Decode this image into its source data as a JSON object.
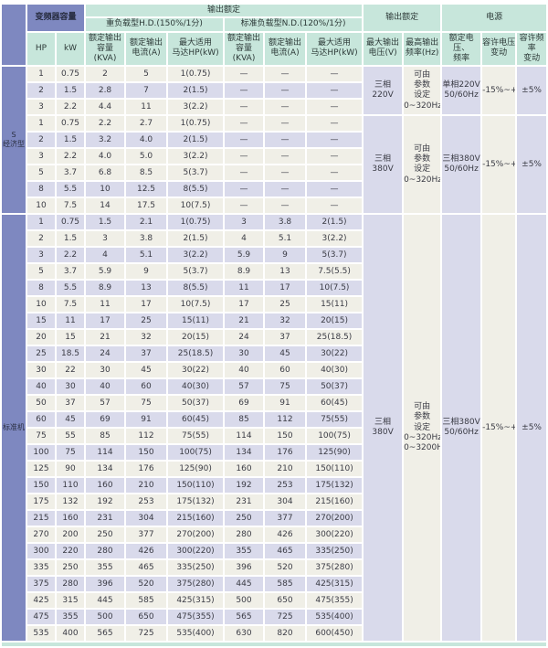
{
  "header": {
    "capacity_group": "变频器容量",
    "output_rating_group": "输出额定",
    "hd_group": "重负载型H.D.(150%/1分)",
    "nd_group": "标准负载型N.D.(120%/1分)",
    "output_rating2_group": "输出额定",
    "power_group": "电源",
    "col_hp": "HP",
    "col_kw": "kW",
    "col_kva": "额定输出\n容量(KVA)",
    "col_current": "额定输出\n电流(A)",
    "col_motor": "最大适用\n马达HP(kW)",
    "col_voltage": "最大输出\n电压(V)",
    "col_freq": "最高输出\n频率(Hz)",
    "col_rated_vf": "额定电压、\n频率",
    "col_volt_var": "容许电压\n变动",
    "col_freq_var": "容许频率\n变动"
  },
  "sections": [
    {
      "label": "S\n经济型",
      "groups": [
        {
          "rows": [
            [
              "1",
              "0.75",
              "2",
              "5",
              "1(0.75)",
              "—",
              "—",
              "—"
            ],
            [
              "2",
              "1.5",
              "2.8",
              "7",
              "2(1.5)",
              "—",
              "—",
              "—"
            ],
            [
              "3",
              "2.2",
              "4.4",
              "11",
              "3(2.2)",
              "—",
              "—",
              "—"
            ]
          ],
          "merged": {
            "voltage": "三相\n220V",
            "freq": "可由\n参数\n设定\n0~320Hz",
            "rated_vf": "单相220V\n50/60Hz",
            "volt_var": "-15%~+10%",
            "freq_var": "±5%"
          }
        },
        {
          "rows": [
            [
              "1",
              "0.75",
              "2.2",
              "2.7",
              "1(0.75)",
              "—",
              "—",
              "—"
            ],
            [
              "2",
              "1.5",
              "3.2",
              "4.0",
              "2(1.5)",
              "—",
              "—",
              "—"
            ],
            [
              "3",
              "2.2",
              "4.0",
              "5.0",
              "3(2.2)",
              "—",
              "—",
              "—"
            ],
            [
              "5",
              "3.7",
              "6.8",
              "8.5",
              "5(3.7)",
              "—",
              "—",
              "—"
            ],
            [
              "8",
              "5.5",
              "10",
              "12.5",
              "8(5.5)",
              "—",
              "—",
              "—"
            ],
            [
              "10",
              "7.5",
              "14",
              "17.5",
              "10(7.5)",
              "—",
              "—",
              "—"
            ]
          ],
          "merged": {
            "voltage": "三相\n380V",
            "freq": "可由\n参数\n设定\n0~320Hz",
            "rated_vf": "三相380V\n50/60Hz",
            "volt_var": "-15%~+10%",
            "freq_var": "±5%"
          }
        }
      ]
    },
    {
      "label": "标准机",
      "groups": [
        {
          "rows": [
            [
              "1",
              "0.75",
              "1.5",
              "2.1",
              "1(0.75)",
              "3",
              "3.8",
              "2(1.5)"
            ],
            [
              "2",
              "1.5",
              "3",
              "3.8",
              "2(1.5)",
              "4",
              "5.1",
              "3(2.2)"
            ],
            [
              "3",
              "2.2",
              "4",
              "5.1",
              "3(2.2)",
              "5.9",
              "9",
              "5(3.7)"
            ],
            [
              "5",
              "3.7",
              "5.9",
              "9",
              "5(3.7)",
              "8.9",
              "13",
              "7.5(5.5)"
            ],
            [
              "8",
              "5.5",
              "8.9",
              "13",
              "8(5.5)",
              "11",
              "17",
              "10(7.5)"
            ],
            [
              "10",
              "7.5",
              "11",
              "17",
              "10(7.5)",
              "17",
              "25",
              "15(11)"
            ],
            [
              "15",
              "11",
              "17",
              "25",
              "15(11)",
              "21",
              "32",
              "20(15)"
            ],
            [
              "20",
              "15",
              "21",
              "32",
              "20(15)",
              "24",
              "37",
              "25(18.5)"
            ],
            [
              "25",
              "18.5",
              "24",
              "37",
              "25(18.5)",
              "30",
              "45",
              "30(22)"
            ],
            [
              "30",
              "22",
              "30",
              "45",
              "30(22)",
              "40",
              "60",
              "40(30)"
            ],
            [
              "40",
              "30",
              "40",
              "60",
              "40(30)",
              "57",
              "75",
              "50(37)"
            ],
            [
              "50",
              "37",
              "57",
              "75",
              "50(37)",
              "69",
              "91",
              "60(45)"
            ],
            [
              "60",
              "45",
              "69",
              "91",
              "60(45)",
              "85",
              "112",
              "75(55)"
            ],
            [
              "75",
              "55",
              "85",
              "112",
              "75(55)",
              "114",
              "150",
              "100(75)"
            ],
            [
              "100",
              "75",
              "114",
              "150",
              "100(75)",
              "134",
              "176",
              "125(90)"
            ],
            [
              "125",
              "90",
              "134",
              "176",
              "125(90)",
              "160",
              "210",
              "150(110)"
            ],
            [
              "150",
              "110",
              "160",
              "210",
              "150(110)",
              "192",
              "253",
              "175(132)"
            ],
            [
              "175",
              "132",
              "192",
              "253",
              "175(132)",
              "231",
              "304",
              "215(160)"
            ],
            [
              "215",
              "160",
              "231",
              "304",
              "215(160)",
              "250",
              "377",
              "270(200)"
            ],
            [
              "270",
              "200",
              "250",
              "377",
              "270(200)",
              "280",
              "426",
              "300(220)"
            ],
            [
              "300",
              "220",
              "280",
              "426",
              "300(220)",
              "355",
              "465",
              "335(250)"
            ],
            [
              "335",
              "250",
              "355",
              "465",
              "335(250)",
              "396",
              "520",
              "375(280)"
            ],
            [
              "375",
              "280",
              "396",
              "520",
              "375(280)",
              "445",
              "585",
              "425(315)"
            ],
            [
              "425",
              "315",
              "445",
              "585",
              "425(315)",
              "500",
              "650",
              "475(355)"
            ],
            [
              "475",
              "355",
              "500",
              "650",
              "475(355)",
              "565",
              "725",
              "535(400)"
            ],
            [
              "535",
              "400",
              "565",
              "725",
              "535(400)",
              "630",
              "820",
              "600(450)"
            ]
          ],
          "merged": {
            "voltage": "三相\n380V",
            "freq": "可由\n参数\n设定\n0~320Hz\n0~3200Hz",
            "rated_vf": "三相380V\n50/60Hz",
            "volt_var": "-15%~+10%",
            "freq_var": "±5%"
          }
        }
      ]
    }
  ],
  "colors": {
    "header_blue": "#7e88c0",
    "header_teal": "#c7e6db",
    "row_beige": "#f0efe7",
    "row_lavender": "#d9daeb"
  }
}
